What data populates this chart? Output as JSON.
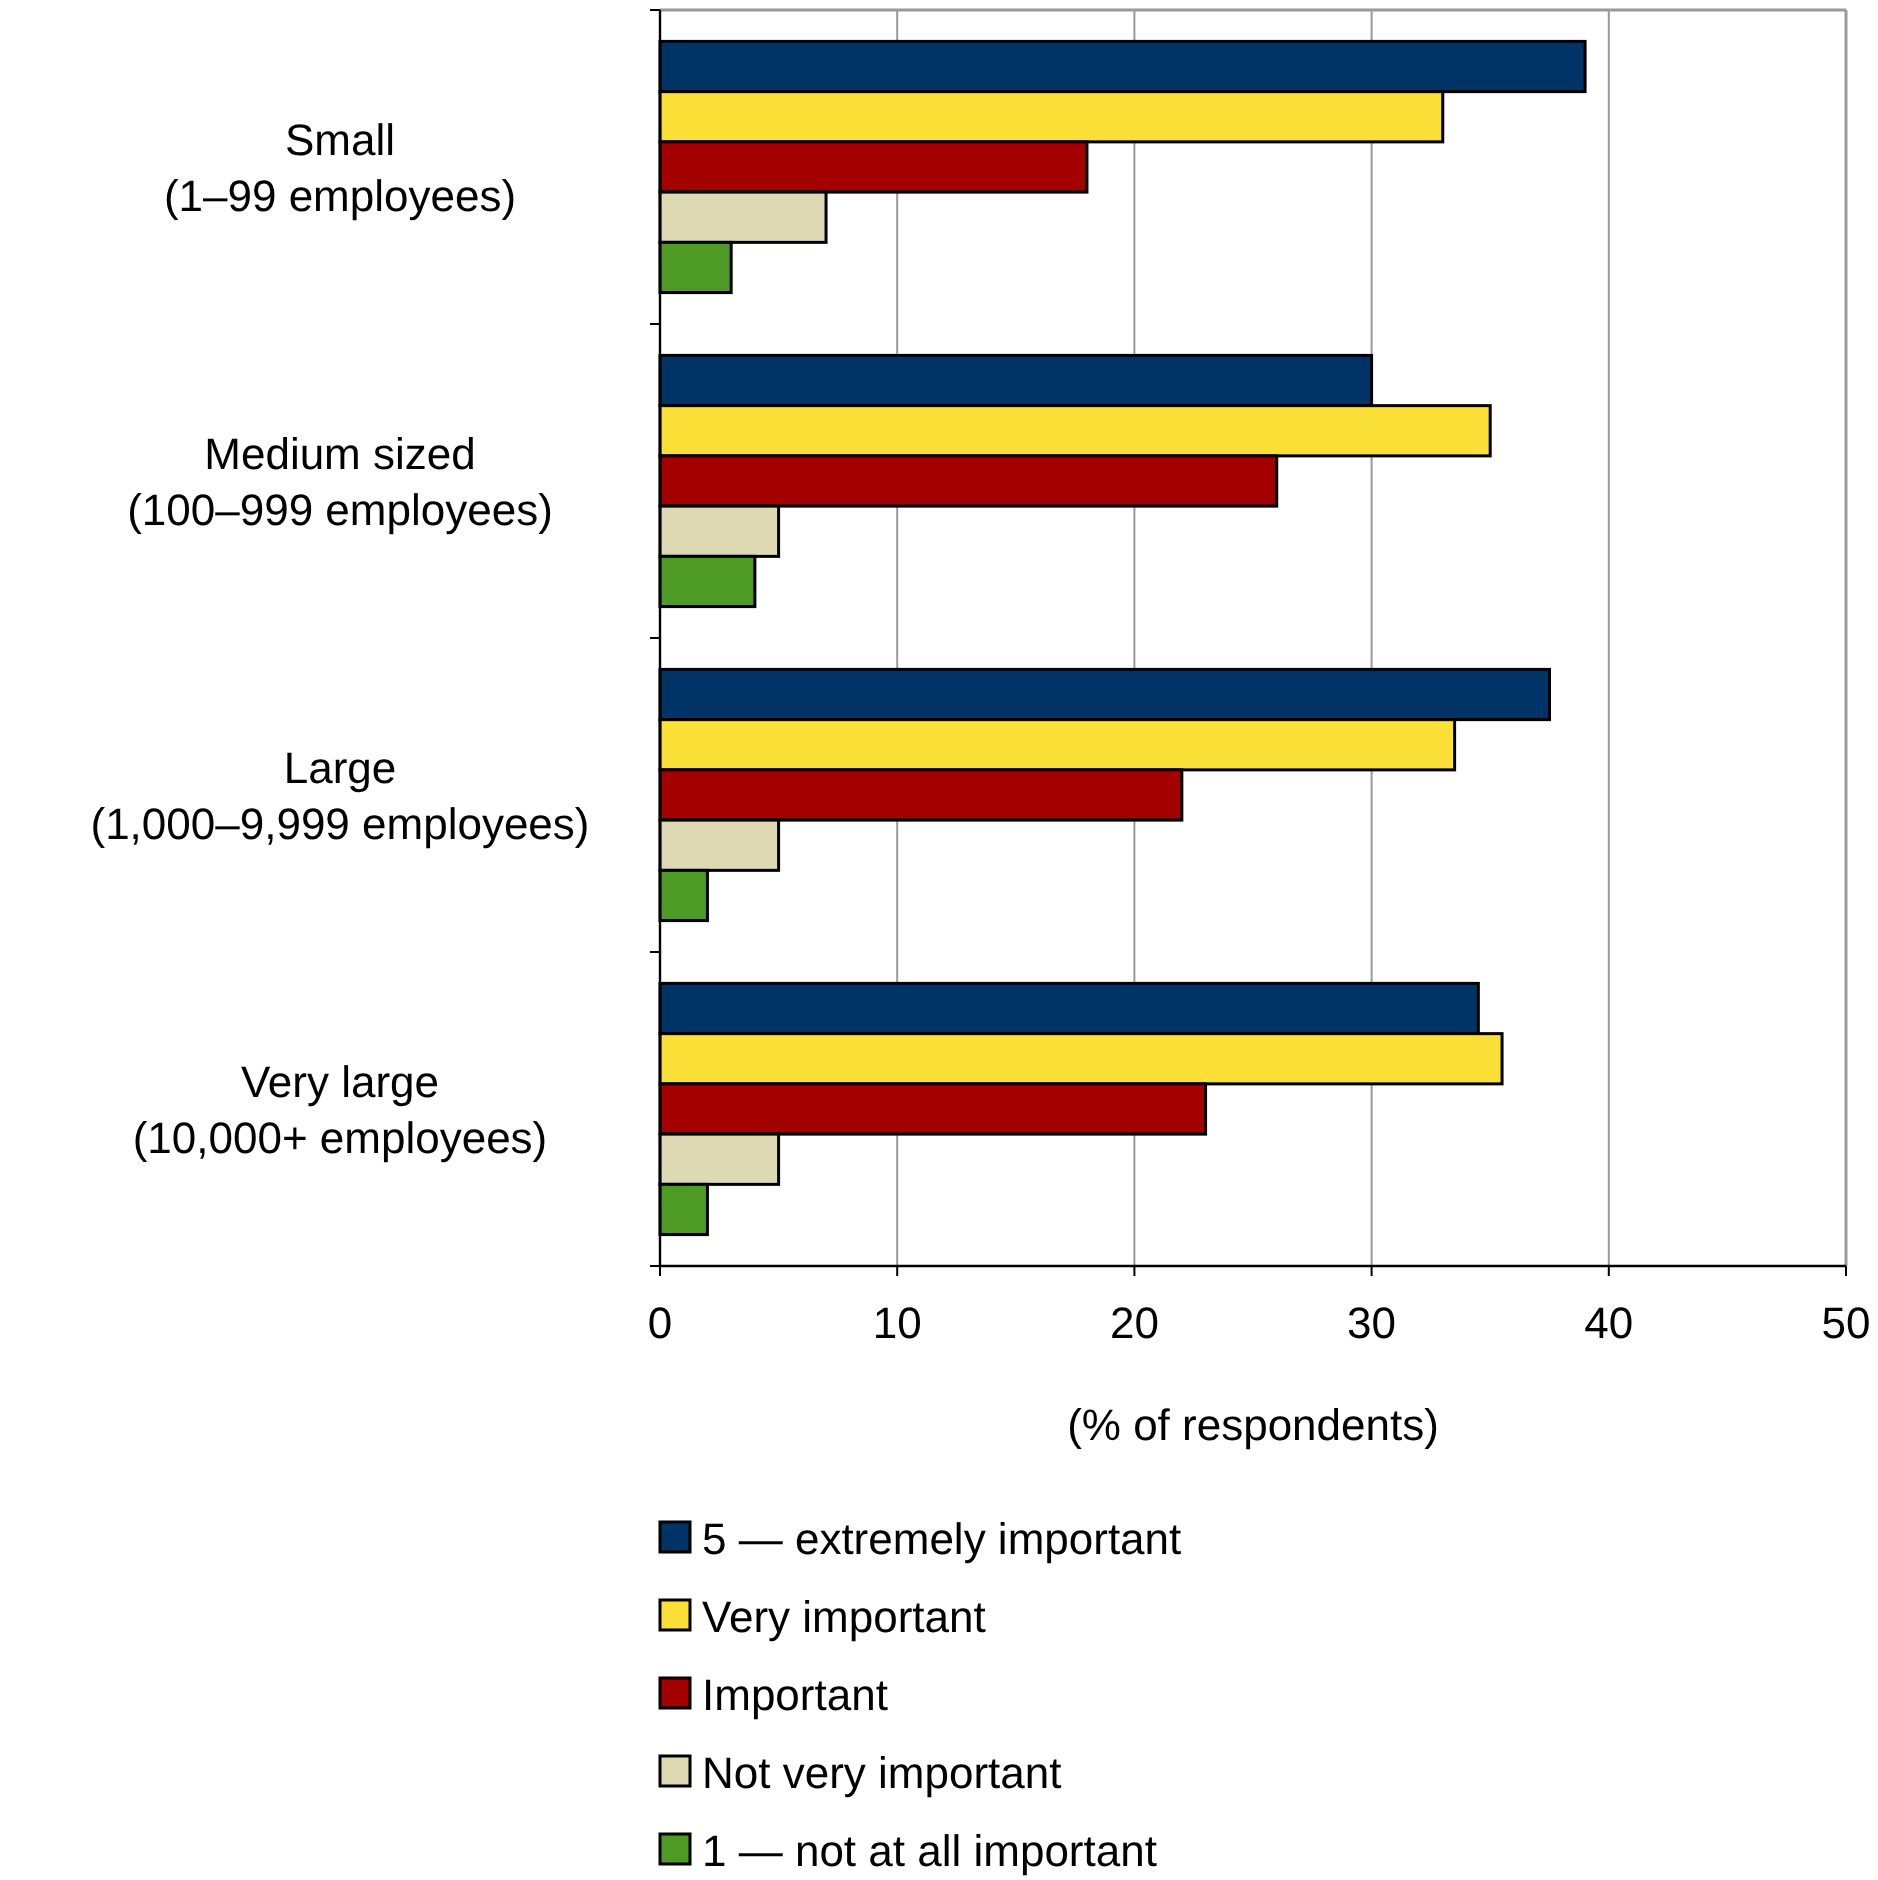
{
  "chart_data": {
    "type": "bar",
    "orientation": "horizontal",
    "xlabel": "(% of respondents)",
    "categories": [
      "Small\n(1–99 employees)",
      "Medium sized\n(100–999 employees)",
      "Large\n(1,000–9,999 employees)",
      "Very large\n(10,000+ employees)"
    ],
    "series": [
      {
        "name": "5 — extremely important",
        "color": "#003366",
        "values": [
          39,
          30,
          37.5,
          34.5
        ]
      },
      {
        "name": "Very important",
        "color": "#f9df36",
        "values": [
          33,
          35,
          33.5,
          35.5
        ]
      },
      {
        "name": "Important",
        "color": "#a50000",
        "values": [
          18,
          26,
          22,
          23
        ]
      },
      {
        "name": "Not very important",
        "color": "#ddd9b3",
        "values": [
          7,
          5,
          5,
          5
        ]
      },
      {
        "name": "1 — not at all important",
        "color": "#4d9a25",
        "values": [
          3,
          4,
          2,
          2
        ]
      }
    ],
    "xlim": [
      0,
      50
    ],
    "xticks": [
      0,
      10,
      20,
      30,
      40,
      50
    ],
    "grid": "x",
    "legend": "bottom"
  }
}
